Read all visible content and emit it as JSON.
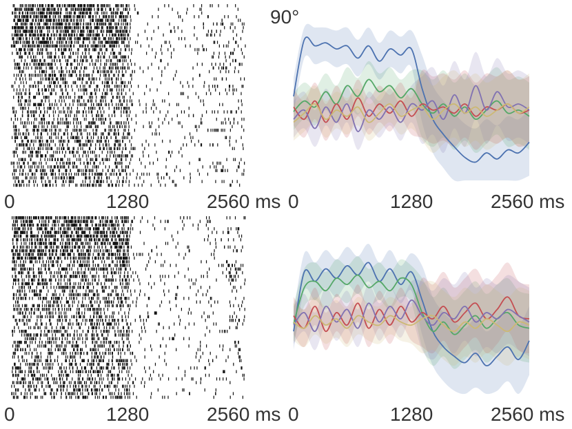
{
  "chart_data": [
    {
      "type": "raster",
      "panel": "top-left",
      "title": "",
      "xlabel": "",
      "ylabel": "",
      "x_ticks": [
        "0",
        "1280",
        "2560 ms"
      ],
      "x_range_ms": [
        0,
        2560
      ],
      "trial_count": 50,
      "stimulus_offset_ms": 1280,
      "late_burst_ms": [
        2150,
        2450
      ]
    },
    {
      "type": "line",
      "panel": "top-right",
      "title": "90°",
      "x_ticks": [
        "0",
        "1280",
        "2560 ms"
      ],
      "x_range_ms": [
        0,
        2560
      ],
      "grid": false,
      "legend": "none",
      "series": [
        {
          "color": "#4c72b0",
          "band": true,
          "values": [
            0.55,
            0.92,
            0.88,
            0.9,
            0.86,
            0.88,
            0.8,
            0.88,
            0.78,
            0.86,
            0.82,
            0.86,
            0.6,
            0.4,
            0.3,
            0.22,
            0.15,
            0.12,
            0.18,
            0.14,
            0.2,
            0.18,
            0.25
          ]
        },
        {
          "color": "#55a868",
          "band": true,
          "values": [
            0.45,
            0.52,
            0.48,
            0.58,
            0.5,
            0.62,
            0.55,
            0.66,
            0.58,
            0.62,
            0.54,
            0.6,
            0.5,
            0.44,
            0.5,
            0.42,
            0.48,
            0.4,
            0.46,
            0.52,
            0.44,
            0.46,
            0.42
          ]
        },
        {
          "color": "#c44e52",
          "band": true,
          "values": [
            0.48,
            0.4,
            0.52,
            0.38,
            0.5,
            0.4,
            0.54,
            0.42,
            0.5,
            0.44,
            0.52,
            0.42,
            0.5,
            0.46,
            0.48,
            0.44,
            0.5,
            0.42,
            0.48,
            0.46,
            0.5,
            0.44,
            0.46
          ]
        },
        {
          "color": "#8172b2",
          "band": true,
          "values": [
            0.4,
            0.46,
            0.34,
            0.48,
            0.38,
            0.5,
            0.32,
            0.46,
            0.4,
            0.48,
            0.38,
            0.5,
            0.46,
            0.52,
            0.4,
            0.56,
            0.44,
            0.62,
            0.46,
            0.58,
            0.48,
            0.5,
            0.46
          ]
        },
        {
          "color": "#ccb974",
          "band": true,
          "values": [
            0.38,
            0.44,
            0.5,
            0.4,
            0.46,
            0.42,
            0.48,
            0.38,
            0.44,
            0.5,
            0.42,
            0.46,
            0.48,
            0.4,
            0.46,
            0.5,
            0.44,
            0.48,
            0.42,
            0.46,
            0.5,
            0.44,
            0.48
          ]
        }
      ]
    },
    {
      "type": "raster",
      "panel": "bottom-left",
      "title": "",
      "x_ticks": [
        "0",
        "1280",
        "2560 ms"
      ],
      "x_range_ms": [
        0,
        2560
      ],
      "trial_count": 50,
      "stimulus_offset_ms": 1280,
      "late_burst_ms": [
        2250,
        2500
      ]
    },
    {
      "type": "line",
      "panel": "bottom-right",
      "title": "",
      "x_ticks": [
        "0",
        "1280",
        "2560 ms"
      ],
      "x_range_ms": [
        0,
        2560
      ],
      "grid": false,
      "legend": "none",
      "series": [
        {
          "color": "#4c72b0",
          "band": true,
          "values": [
            0.4,
            0.78,
            0.72,
            0.8,
            0.74,
            0.82,
            0.76,
            0.84,
            0.72,
            0.8,
            0.7,
            0.78,
            0.6,
            0.4,
            0.3,
            0.24,
            0.2,
            0.26,
            0.18,
            0.24,
            0.3,
            0.22,
            0.34
          ]
        },
        {
          "color": "#55a868",
          "band": true,
          "values": [
            0.45,
            0.68,
            0.72,
            0.66,
            0.74,
            0.7,
            0.76,
            0.68,
            0.72,
            0.66,
            0.74,
            0.7,
            0.52,
            0.4,
            0.46,
            0.38,
            0.44,
            0.5,
            0.42,
            0.48,
            0.52,
            0.44,
            0.42
          ]
        },
        {
          "color": "#c44e52",
          "band": true,
          "values": [
            0.5,
            0.42,
            0.56,
            0.4,
            0.52,
            0.44,
            0.58,
            0.42,
            0.54,
            0.44,
            0.56,
            0.46,
            0.52,
            0.48,
            0.56,
            0.46,
            0.52,
            0.58,
            0.48,
            0.54,
            0.62,
            0.5,
            0.48
          ]
        },
        {
          "color": "#8172b2",
          "band": true,
          "values": [
            0.44,
            0.52,
            0.4,
            0.56,
            0.46,
            0.54,
            0.42,
            0.58,
            0.46,
            0.56,
            0.48,
            0.6,
            0.5,
            0.44,
            0.52,
            0.48,
            0.56,
            0.46,
            0.52,
            0.48,
            0.54,
            0.5,
            0.46
          ]
        },
        {
          "color": "#ccb974",
          "band": true,
          "values": [
            0.46,
            0.42,
            0.5,
            0.44,
            0.48,
            0.42,
            0.5,
            0.46,
            0.44,
            0.5,
            0.46,
            0.44,
            0.48,
            0.5,
            0.44,
            0.4,
            0.46,
            0.42,
            0.48,
            0.44,
            0.4,
            0.46,
            0.44
          ]
        }
      ]
    }
  ]
}
